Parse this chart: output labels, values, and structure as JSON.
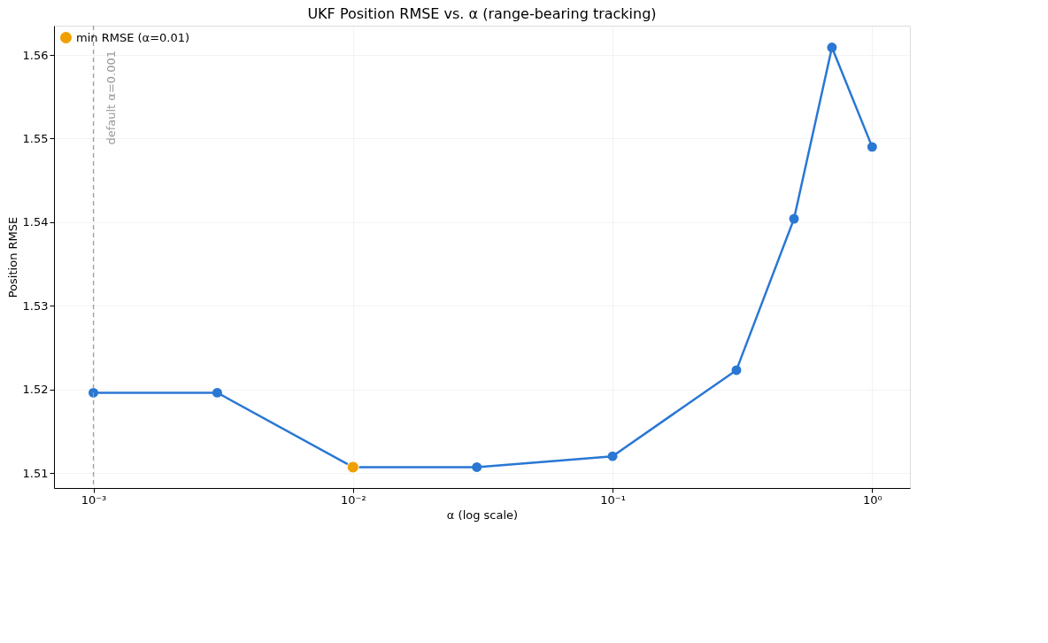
{
  "chart_data": {
    "type": "line",
    "title": "UKF Position RMSE vs. α (range-bearing tracking)",
    "xlabel": "α (log scale)",
    "ylabel": "Position RMSE",
    "x": [
      0.001,
      0.003,
      0.01,
      0.03,
      0.1,
      0.3,
      0.5,
      0.7,
      1.0
    ],
    "series": [
      {
        "color": "#2a77d4",
        "values": [
          1.5196,
          1.5196,
          1.5107,
          1.5107,
          1.512,
          1.5223,
          1.5404,
          1.5609,
          1.549
        ]
      },
      {
        "type": "scatter",
        "name": "min RMSE (α=0.01)",
        "color": "#f0a000",
        "x": [
          0.01
        ],
        "values": [
          1.5107
        ]
      }
    ],
    "log": "x",
    "xlim": [
      0.000705,
      1.398
    ],
    "ylim": [
      1.5082,
      1.5635
    ],
    "xticks": [
      {
        "value": 0.001,
        "label": "10⁻³"
      },
      {
        "value": 0.01,
        "label": "10⁻²"
      },
      {
        "value": 0.1,
        "label": "10⁻¹"
      },
      {
        "value": 1,
        "label": "10⁰"
      }
    ],
    "yticks": [
      1.51,
      1.52,
      1.53,
      1.54,
      1.55,
      1.56
    ],
    "ref_lines": [
      {
        "axis": "x",
        "value": 0.001,
        "label": "default α=0.001",
        "color": "#999999",
        "line_style": "dashed"
      }
    ],
    "grid": true,
    "legend": "top left",
    "marker": "circle",
    "line_style": "solid"
  }
}
